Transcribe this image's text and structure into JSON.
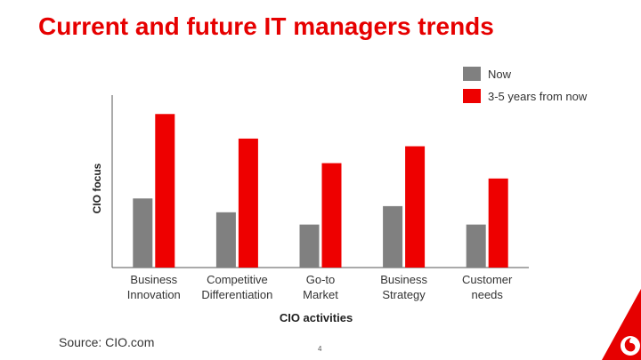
{
  "title": "Current and future IT managers trends",
  "source": "Source: CIO.com",
  "page_number": "4",
  "colors": {
    "now": "#808080",
    "future": "#ee0000",
    "title": "#e60000",
    "axis": "#555555"
  },
  "chart_data": {
    "type": "bar",
    "categories": [
      [
        "Business",
        "Innovation"
      ],
      [
        "Competitive",
        "Differentiation"
      ],
      [
        "Go-to",
        "Market"
      ],
      [
        "Business",
        "Strategy"
      ],
      [
        "Customer",
        "needs"
      ]
    ],
    "series": [
      {
        "name": "Now",
        "values": [
          45,
          36,
          28,
          40,
          28
        ]
      },
      {
        "name": "3-5 years from now",
        "values": [
          100,
          84,
          68,
          79,
          58
        ]
      }
    ],
    "xlabel": "CIO activities",
    "ylabel": "CIO focus",
    "ylim": [
      0,
      110
    ],
    "grid": false,
    "legend": "top-right"
  }
}
